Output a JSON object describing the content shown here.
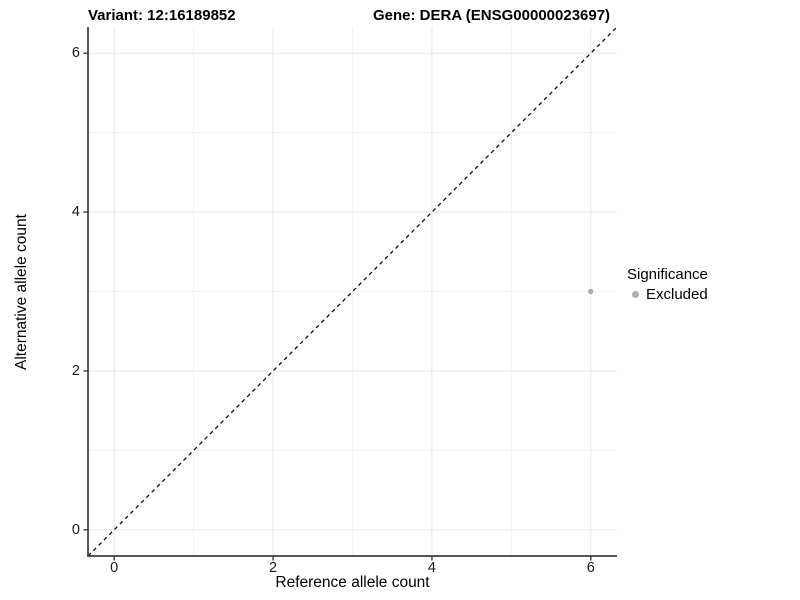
{
  "titles": {
    "variant": "Variant: 12:16189852",
    "gene": "Gene: DERA (ENSG00000023697)"
  },
  "axes": {
    "x_label": "Reference allele count",
    "y_label": "Alternative allele count"
  },
  "legend": {
    "title": "Significance",
    "items": [
      {
        "label": "Excluded",
        "color": "#aeaeae"
      }
    ]
  },
  "chart_data": {
    "type": "scatter",
    "title": "Variant: 12:16189852   Gene: DERA (ENSG00000023697)",
    "xlabel": "Reference allele count",
    "ylabel": "Alternative allele count",
    "xlim": [
      -0.33,
      6.33
    ],
    "ylim": [
      -0.33,
      6.33
    ],
    "x_ticks": [
      0,
      2,
      4,
      6
    ],
    "y_ticks": [
      0,
      2,
      4,
      6
    ],
    "x_minor_ticks": [
      1,
      3,
      5
    ],
    "y_minor_ticks": [
      1,
      3,
      5
    ],
    "grid": true,
    "legend_position": "right",
    "series": [
      {
        "name": "Excluded",
        "color": "#aeaeae",
        "points": [
          {
            "x": 6,
            "y": 3
          }
        ]
      }
    ],
    "reference_line": {
      "type": "identity",
      "slope": 1,
      "intercept": 0,
      "style": "dashed",
      "color": "#000000"
    },
    "colors": {
      "major_grid": "#e8e8e8",
      "minor_grid": "#f3f3f3",
      "axis_line": "#3c3c3c",
      "background": "#ffffff"
    }
  }
}
